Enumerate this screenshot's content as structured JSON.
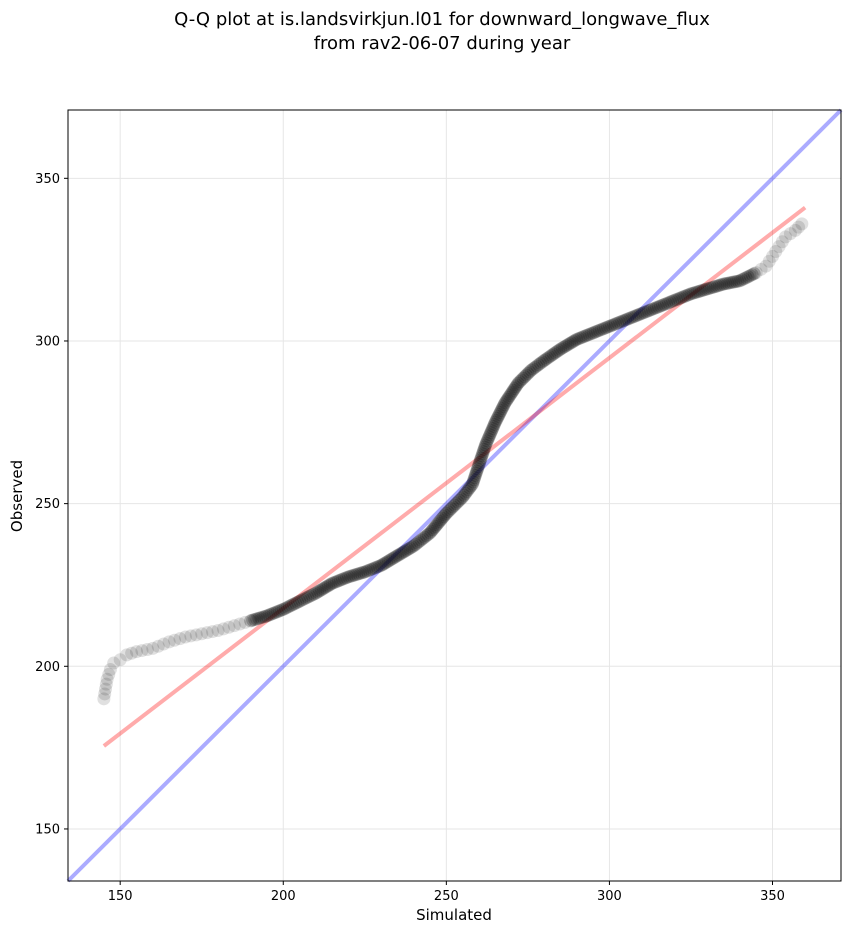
{
  "chart_data": {
    "type": "scatter",
    "title": "Q-Q plot at is.landsvirkjun.l01 for downward_longwave_flux",
    "subtitle": "from rav2-06-07 during year",
    "xlabel": "Simulated",
    "ylabel": "Observed",
    "xlim": [
      134,
      371
    ],
    "ylim": [
      134,
      371
    ],
    "xticks": [
      150,
      200,
      250,
      300,
      350
    ],
    "yticks": [
      150,
      200,
      250,
      300,
      350
    ],
    "grid": true,
    "colors": {
      "points": "#000000",
      "identity_line": "#0000ff",
      "fit_line": "#ff0000",
      "grid": "#e6e6e6"
    },
    "quantile_curve": [
      [
        145,
        190
      ],
      [
        145.5,
        193
      ],
      [
        146,
        196
      ],
      [
        147,
        199
      ],
      [
        148,
        201
      ],
      [
        150,
        202
      ],
      [
        152,
        203.5
      ],
      [
        155,
        204.5
      ],
      [
        160,
        205.5
      ],
      [
        165,
        207.5
      ],
      [
        170,
        209
      ],
      [
        175,
        210
      ],
      [
        180,
        211
      ],
      [
        185,
        212.5
      ],
      [
        190,
        214
      ],
      [
        195,
        215.5
      ],
      [
        200,
        217.5
      ],
      [
        205,
        220
      ],
      [
        210,
        222.5
      ],
      [
        215,
        225.5
      ],
      [
        220,
        227.5
      ],
      [
        225,
        229
      ],
      [
        230,
        231
      ],
      [
        235,
        234
      ],
      [
        240,
        237
      ],
      [
        245,
        241
      ],
      [
        250,
        247
      ],
      [
        255,
        252
      ],
      [
        258,
        256
      ],
      [
        260,
        262
      ],
      [
        262,
        268
      ],
      [
        265,
        275
      ],
      [
        268,
        281
      ],
      [
        272,
        287
      ],
      [
        276,
        291
      ],
      [
        280,
        294
      ],
      [
        285,
        297.5
      ],
      [
        290,
        300.5
      ],
      [
        295,
        302.5
      ],
      [
        300,
        304.5
      ],
      [
        305,
        306.5
      ],
      [
        310,
        308.5
      ],
      [
        315,
        310.5
      ],
      [
        320,
        312.5
      ],
      [
        325,
        314.5
      ],
      [
        330,
        316
      ],
      [
        335,
        317.5
      ],
      [
        340,
        318.5
      ],
      [
        345,
        321
      ],
      [
        348,
        323
      ],
      [
        350,
        326
      ],
      [
        352,
        329
      ],
      [
        354,
        332
      ],
      [
        357,
        334
      ],
      [
        359,
        336
      ]
    ],
    "identity_line": {
      "x": [
        134,
        371
      ],
      "y": [
        134,
        371
      ]
    },
    "fit_line": {
      "x": [
        145,
        360
      ],
      "y": [
        175.5,
        341
      ]
    }
  }
}
